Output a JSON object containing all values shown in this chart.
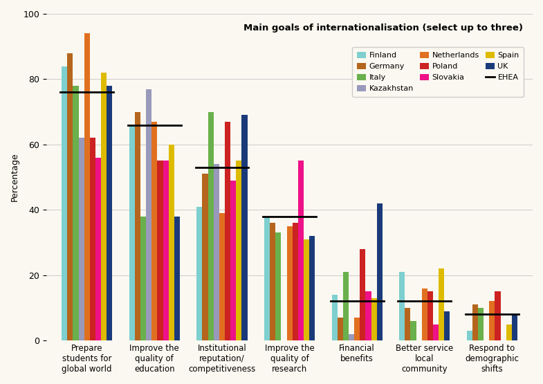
{
  "title": "Main goals of internationalisation (select up to three)",
  "ylabel": "Percentage",
  "background_color": "#faf8f0",
  "ylim": [
    0,
    100
  ],
  "yticks": [
    0,
    20,
    40,
    60,
    80,
    100
  ],
  "categories": [
    "Prepare\nstudents for\nglobal world",
    "Improve the\nquality of\neducation",
    "Institutional\nreputation/\ncompetitiveness",
    "Improve the\nquality of\nresearch",
    "Financial\nbenefits",
    "Better service\nlocal\ncommunity",
    "Respond to\ndemographic\nshifts"
  ],
  "countries": [
    "Finland",
    "Germany",
    "Italy",
    "Kazakhstan",
    "Netherlands",
    "Poland",
    "Slovakia",
    "Spain",
    "UK"
  ],
  "colors": {
    "Finland": "#7ecfcf",
    "Germany": "#b5651d",
    "Italy": "#6ab04c",
    "Kazakhstan": "#9999bb",
    "Netherlands": "#e07020",
    "Poland": "#cc2222",
    "Slovakia": "#ee1188",
    "Spain": "#ddbb00",
    "UK": "#1a3a7a"
  },
  "ehea_values": [
    76,
    66,
    53,
    38,
    12,
    12,
    8
  ],
  "data": {
    "Finland": [
      84,
      66,
      41,
      38,
      14,
      21,
      3
    ],
    "Germany": [
      88,
      70,
      51,
      36,
      7,
      10,
      11
    ],
    "Italy": [
      78,
      38,
      70,
      33,
      21,
      6,
      10
    ],
    "Kazakhstan": [
      62,
      77,
      54,
      0,
      2,
      0,
      0
    ],
    "Netherlands": [
      94,
      67,
      39,
      35,
      7,
      16,
      12
    ],
    "Poland": [
      62,
      55,
      67,
      36,
      28,
      15,
      15
    ],
    "Slovakia": [
      56,
      55,
      49,
      55,
      15,
      5,
      0
    ],
    "Spain": [
      82,
      60,
      55,
      31,
      13,
      22,
      5
    ],
    "UK": [
      78,
      38,
      69,
      32,
      42,
      9,
      8
    ]
  }
}
